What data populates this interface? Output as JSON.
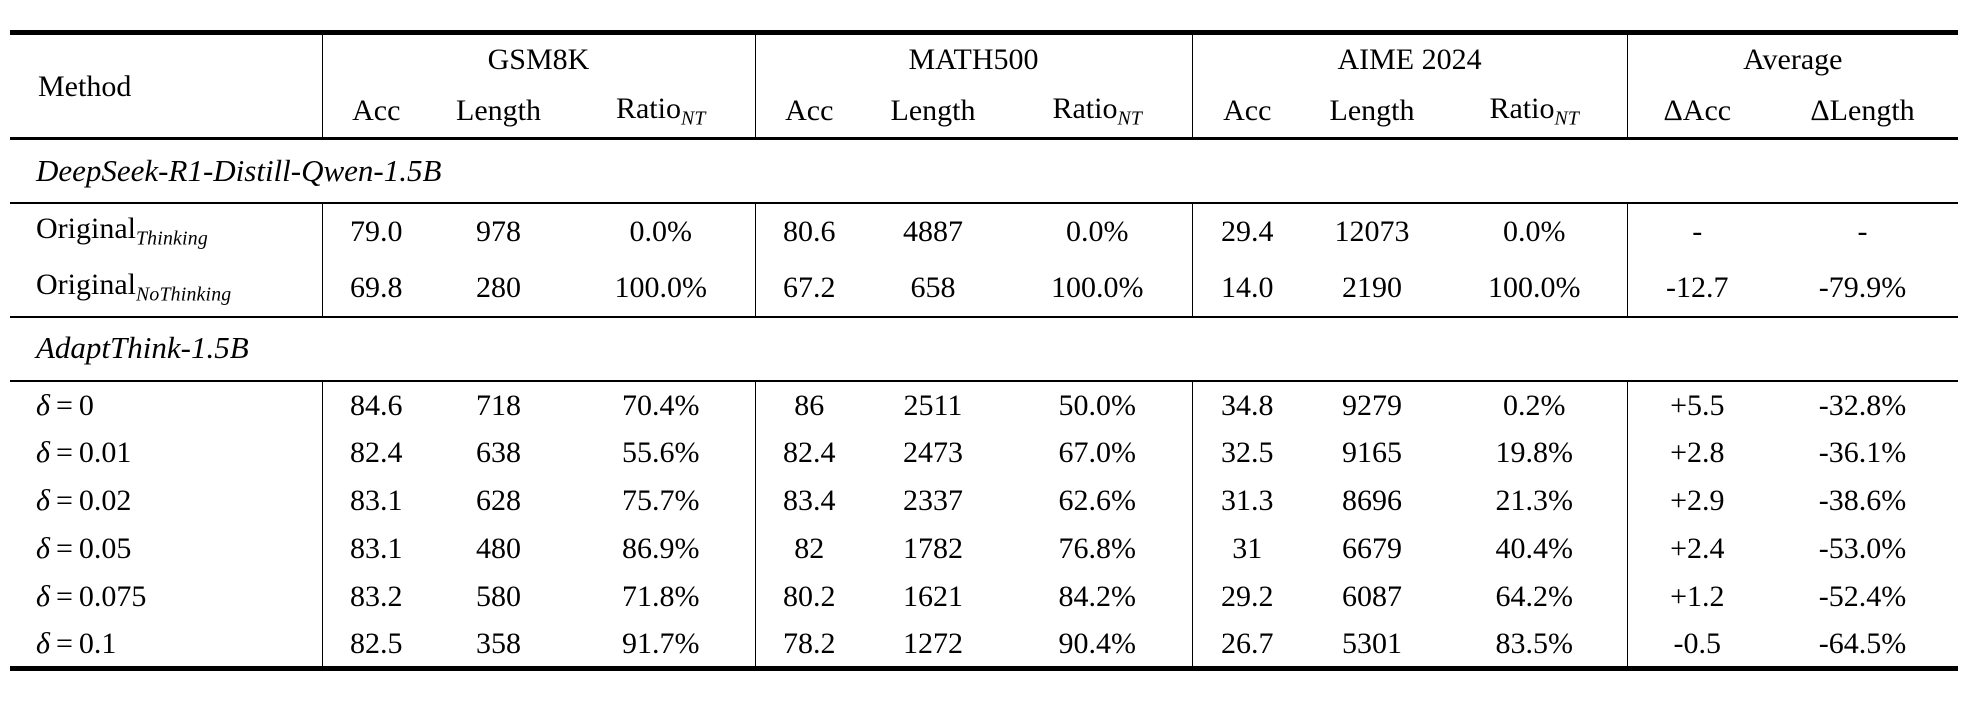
{
  "table": {
    "method_header": "Method",
    "groups": [
      {
        "label": "GSM8K",
        "cols": [
          {
            "t": "Acc"
          },
          {
            "t": "Length"
          },
          {
            "t": "Ratio",
            "sub": "NT"
          }
        ]
      },
      {
        "label": "MATH500",
        "cols": [
          {
            "t": "Acc"
          },
          {
            "t": "Length"
          },
          {
            "t": "Ratio",
            "sub": "NT"
          }
        ]
      },
      {
        "label": "AIME 2024",
        "cols": [
          {
            "t": "Acc"
          },
          {
            "t": "Length"
          },
          {
            "t": "Ratio",
            "sub": "NT"
          }
        ]
      },
      {
        "label": "Average",
        "cols": [
          {
            "t": "ΔAcc"
          },
          {
            "t": "ΔLength"
          }
        ]
      }
    ],
    "sections": [
      {
        "title": "DeepSeek-R1-Distill-Qwen-1.5B",
        "rows": [
          {
            "method": {
              "name": "Original",
              "sub": "Thinking"
            },
            "values": [
              "79.0",
              "978",
              "0.0%",
              "80.6",
              "4887",
              "0.0%",
              "29.4",
              "12073",
              "0.0%",
              "-",
              "-"
            ]
          },
          {
            "method": {
              "name": "Original",
              "sub": "NoThinking"
            },
            "values": [
              "69.8",
              "280",
              "100.0%",
              "67.2",
              "658",
              "100.0%",
              "14.0",
              "2190",
              "100.0%",
              "-12.7",
              "-79.9%"
            ]
          }
        ]
      },
      {
        "title": "AdaptThink-1.5B",
        "rows": [
          {
            "method": {
              "var": "δ",
              "eq": "0"
            },
            "values": [
              "84.6",
              "718",
              "70.4%",
              "86",
              "2511",
              "50.0%",
              "34.8",
              "9279",
              "0.2%",
              "+5.5",
              "-32.8%"
            ]
          },
          {
            "method": {
              "var": "δ",
              "eq": "0.01"
            },
            "values": [
              "82.4",
              "638",
              "55.6%",
              "82.4",
              "2473",
              "67.0%",
              "32.5",
              "9165",
              "19.8%",
              "+2.8",
              "-36.1%"
            ]
          },
          {
            "method": {
              "var": "δ",
              "eq": "0.02"
            },
            "values": [
              "83.1",
              "628",
              "75.7%",
              "83.4",
              "2337",
              "62.6%",
              "31.3",
              "8696",
              "21.3%",
              "+2.9",
              "-38.6%"
            ]
          },
          {
            "method": {
              "var": "δ",
              "eq": "0.05"
            },
            "values": [
              "83.1",
              "480",
              "86.9%",
              "82",
              "1782",
              "76.8%",
              "31",
              "6679",
              "40.4%",
              "+2.4",
              "-53.0%"
            ]
          },
          {
            "method": {
              "var": "δ",
              "eq": "0.075"
            },
            "values": [
              "83.2",
              "580",
              "71.8%",
              "80.2",
              "1621",
              "84.2%",
              "29.2",
              "6087",
              "64.2%",
              "+1.2",
              "-52.4%"
            ]
          },
          {
            "method": {
              "var": "δ",
              "eq": "0.1"
            },
            "values": [
              "82.5",
              "358",
              "91.7%",
              "78.2",
              "1272",
              "90.4%",
              "26.7",
              "5301",
              "83.5%",
              "-0.5",
              "-64.5%"
            ]
          }
        ]
      }
    ]
  }
}
